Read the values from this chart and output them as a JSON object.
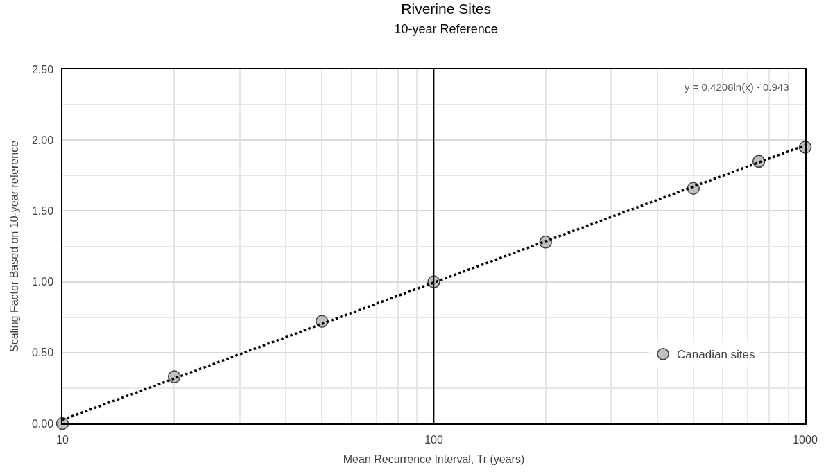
{
  "chart_data": {
    "type": "scatter",
    "title": "Riverine Sites",
    "subtitle": "10-year Reference",
    "xlabel": "Mean Recurrence Interval, Tr (years)",
    "ylabel": "Scaling Factor Based on 10-year reference",
    "log": "x",
    "xlim": [
      10,
      1000
    ],
    "xticks": [
      10,
      100,
      1000
    ],
    "ylim": [
      0,
      2.5
    ],
    "yticks": [
      {
        "value": 0,
        "label": "0.00"
      },
      {
        "value": 0.5,
        "label": "0.50"
      },
      {
        "value": 1,
        "label": "1.00"
      },
      {
        "value": 1.5,
        "label": "1.50"
      },
      {
        "value": 2,
        "label": "2.00"
      },
      {
        "value": 2.5,
        "label": "2.50"
      }
    ],
    "grid": true,
    "legend": "bottom right",
    "marker": "circle",
    "ref_lines": [
      {
        "axis": "x",
        "value": 100,
        "color": "#000000",
        "line_style": "solid"
      }
    ],
    "annotations": [
      "y = 0.4208ln(x) - 0.943"
    ],
    "series": [
      {
        "name": "Canadian sites",
        "color": "#bfbfbf",
        "x": [
          10,
          20,
          50,
          100,
          200,
          500,
          750,
          1000
        ],
        "values": [
          0,
          0.33,
          0.72,
          1.0,
          1.28,
          1.66,
          1.85,
          1.95
        ]
      },
      {
        "type": "line",
        "color": "#000000",
        "line_style": "dotted",
        "marker": "none",
        "x": [
          10,
          1000
        ],
        "values": [
          0.026,
          1.964
        ]
      }
    ]
  }
}
